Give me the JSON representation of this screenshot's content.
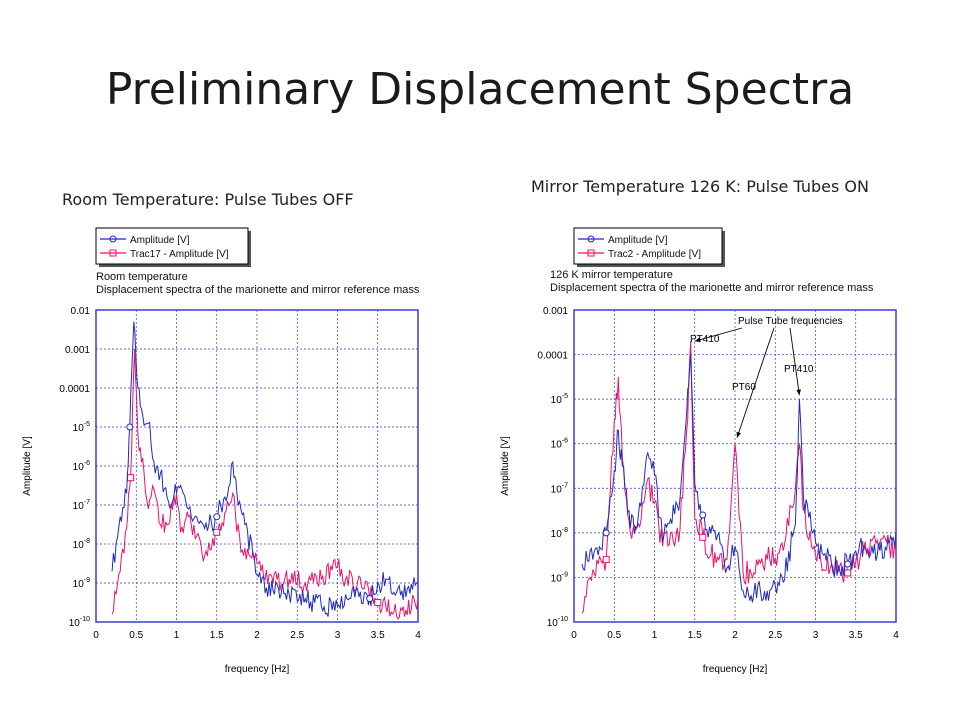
{
  "slide": {
    "title": "Preliminary  Displacement Spectra",
    "left_caption": "Room Temperature: Pulse Tubes OFF",
    "right_caption": "Mirror Temperature 126 K: Pulse Tubes ON"
  },
  "colors": {
    "series1": "#1f2bbf",
    "series2": "#e8136b",
    "grid": "#3b3bd6"
  },
  "chart_data": [
    {
      "type": "line",
      "title": "Room temperature",
      "subtitle": "Displacement spectra of the marionette and mirror reference mass",
      "xlabel": "frequency [Hz]",
      "ylabel": "Amplitude [V]",
      "xlim": [
        0,
        4
      ],
      "ylim_log10": [
        -10,
        -2
      ],
      "y_scale": "log",
      "grid": true,
      "legend_position": "top-left",
      "x_ticks": [
        "0",
        "0.5",
        "1",
        "1.5",
        "2",
        "2.5",
        "3",
        "3.5",
        "4"
      ],
      "y_ticks": [
        "0.01",
        "0.001",
        "0.0001",
        "10^-5",
        "10^-6",
        "10^-7",
        "10^-8",
        "10^-9",
        "10^-10"
      ],
      "series": [
        {
          "name": "Amplitude [V]",
          "marker": "circle",
          "x": [
            0.2,
            0.3,
            0.38,
            0.42,
            0.47,
            0.52,
            0.58,
            0.65,
            0.72,
            0.8,
            0.9,
            1.0,
            1.05,
            1.15,
            1.25,
            1.35,
            1.5,
            1.6,
            1.7,
            1.75,
            1.85,
            1.95,
            2.05,
            2.2,
            2.4,
            2.6,
            2.8,
            3.0,
            3.2,
            3.4,
            3.6,
            3.8,
            4.0
          ],
          "y_log10": [
            -8.7,
            -7.3,
            -6.7,
            -5.0,
            -2.3,
            -4.0,
            -4.7,
            -4.9,
            -5.9,
            -6.2,
            -6.9,
            -6.7,
            -6.5,
            -7.1,
            -7.3,
            -7.6,
            -7.3,
            -6.8,
            -5.9,
            -6.7,
            -7.5,
            -8.3,
            -9.0,
            -9.2,
            -9.3,
            -9.4,
            -9.6,
            -9.6,
            -9.1,
            -9.4,
            -8.9,
            -9.2,
            -9.0
          ]
        },
        {
          "name": "Trac17 - Amplitude [V]",
          "marker": "square",
          "x": [
            0.2,
            0.3,
            0.38,
            0.43,
            0.48,
            0.52,
            0.58,
            0.65,
            0.72,
            0.8,
            0.9,
            1.0,
            1.05,
            1.15,
            1.25,
            1.35,
            1.5,
            1.6,
            1.7,
            1.8,
            1.95,
            2.05,
            2.2,
            2.4,
            2.6,
            2.8,
            3.0,
            3.1,
            3.3,
            3.5,
            3.6,
            3.8,
            4.0
          ],
          "y_log10": [
            -9.8,
            -8.7,
            -7.6,
            -6.3,
            -3.0,
            -5.2,
            -5.8,
            -7.1,
            -6.6,
            -7.5,
            -7.5,
            -6.7,
            -7.7,
            -7.3,
            -7.8,
            -8.3,
            -7.7,
            -7.2,
            -6.7,
            -8.2,
            -8.2,
            -8.7,
            -9.0,
            -8.9,
            -9.0,
            -8.9,
            -8.6,
            -8.9,
            -9.1,
            -9.5,
            -9.6,
            -9.7,
            -9.4
          ]
        }
      ]
    },
    {
      "type": "line",
      "title": "126 K mirror  temperature",
      "subtitle": "Displacement spectra of the marionette and mirror reference mass",
      "xlabel": "frequency [Hz]",
      "ylabel": "Amplitude [V]",
      "xlim": [
        0,
        4
      ],
      "ylim_log10": [
        -10,
        -3
      ],
      "y_scale": "log",
      "grid": true,
      "legend_position": "top-left",
      "x_ticks": [
        "0",
        "0.5",
        "1",
        "1.5",
        "2",
        "2.5",
        "3",
        "3.5",
        "4"
      ],
      "y_ticks": [
        "0.001",
        "0.0001",
        "10^-5",
        "10^-6",
        "10^-7",
        "10^-8",
        "10^-9",
        "10^-10"
      ],
      "annotations": [
        {
          "text": "Pulse Tube frequencies"
        },
        {
          "text": "PT410"
        },
        {
          "text": "PT60"
        },
        {
          "text": "PT410"
        }
      ],
      "series": [
        {
          "name": "Amplitude [V]",
          "marker": "circle",
          "x": [
            0.1,
            0.2,
            0.3,
            0.4,
            0.5,
            0.55,
            0.6,
            0.7,
            0.8,
            0.9,
            1.0,
            1.1,
            1.2,
            1.3,
            1.4,
            1.45,
            1.5,
            1.6,
            1.7,
            1.8,
            1.9,
            2.0,
            2.1,
            2.2,
            2.4,
            2.6,
            2.75,
            2.8,
            2.85,
            3.0,
            3.2,
            3.4,
            3.6,
            3.8,
            4.0
          ],
          "y_log10": [
            -8.7,
            -8.4,
            -8.5,
            -8.0,
            -6.6,
            -5.7,
            -6.5,
            -7.9,
            -7.6,
            -6.3,
            -6.7,
            -8.2,
            -7.7,
            -7.5,
            -5.3,
            -4.0,
            -6.9,
            -7.6,
            -8.0,
            -8.0,
            -8.8,
            -8.3,
            -9.3,
            -9.4,
            -9.3,
            -9.1,
            -7.8,
            -5.0,
            -7.2,
            -8.2,
            -8.7,
            -8.7,
            -8.3,
            -8.4,
            -8.0
          ]
        },
        {
          "name": "Trac2 - Amplitude [V]",
          "marker": "square",
          "x": [
            0.1,
            0.2,
            0.3,
            0.4,
            0.5,
            0.55,
            0.6,
            0.7,
            0.8,
            0.9,
            1.0,
            1.1,
            1.2,
            1.3,
            1.4,
            1.45,
            1.5,
            1.6,
            1.7,
            1.8,
            1.9,
            2.0,
            2.1,
            2.2,
            2.4,
            2.6,
            2.75,
            2.8,
            2.85,
            3.0,
            3.2,
            3.4,
            3.6,
            3.8,
            4.0
          ],
          "y_log10": [
            -9.8,
            -9.0,
            -8.7,
            -8.6,
            -5.5,
            -4.5,
            -6.3,
            -8.0,
            -7.8,
            -6.9,
            -7.3,
            -8.3,
            -8.0,
            -8.2,
            -5.7,
            -3.7,
            -7.7,
            -8.1,
            -8.5,
            -8.6,
            -8.6,
            -6.0,
            -8.9,
            -8.9,
            -8.6,
            -8.4,
            -7.0,
            -6.0,
            -7.5,
            -8.5,
            -8.7,
            -8.9,
            -8.4,
            -8.2,
            -8.4
          ]
        }
      ]
    }
  ]
}
